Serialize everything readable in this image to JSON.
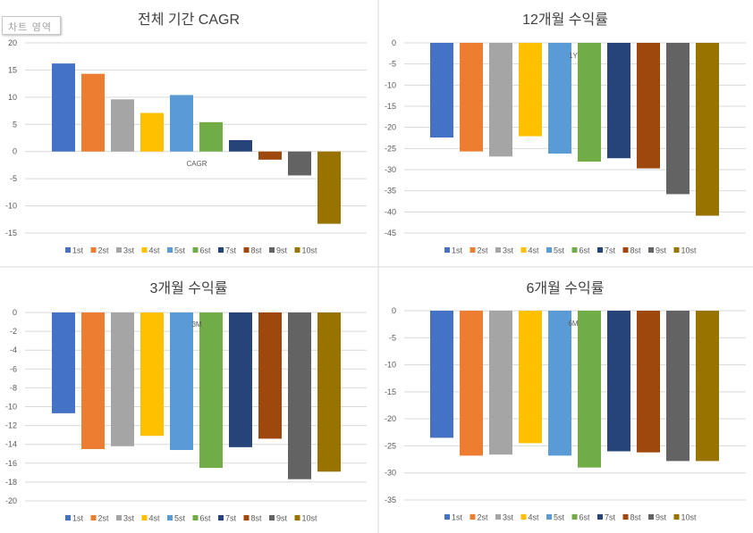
{
  "tooltip": "차트 영역",
  "series_colors": {
    "1st": "#4472C4",
    "2st": "#ED7D31",
    "3st": "#A5A5A5",
    "4st": "#FFC000",
    "5st": "#5B9BD5",
    "6st": "#70AD47",
    "7st": "#264478",
    "8st": "#9E480E",
    "9st": "#636363",
    "10st": "#997300"
  },
  "chart_data": [
    {
      "type": "bar",
      "title": "전체 기간 CAGR",
      "category_label": "CAGR",
      "series_names": [
        "1st",
        "2st",
        "3st",
        "4st",
        "5st",
        "6st",
        "7st",
        "8st",
        "9st",
        "10st"
      ],
      "values": [
        16.2,
        14.3,
        9.6,
        7.1,
        10.4,
        5.4,
        2.1,
        -1.5,
        -4.4,
        -13.3
      ],
      "ylim": [
        -15,
        20
      ],
      "yticks": [
        20,
        15,
        10,
        5,
        0,
        -5,
        -10,
        -15
      ],
      "legend": "bottom"
    },
    {
      "type": "bar",
      "title": "12개월 수익률",
      "category_label": "1Y",
      "series_names": [
        "1st",
        "2st",
        "3st",
        "4st",
        "5st",
        "6st",
        "7st",
        "8st",
        "9st",
        "10st"
      ],
      "values": [
        -22.4,
        -25.7,
        -26.9,
        -22.1,
        -26.2,
        -28.1,
        -27.3,
        -29.7,
        -35.8,
        -40.9
      ],
      "ylim": [
        -45,
        0
      ],
      "yticks": [
        0,
        -5,
        -10,
        -15,
        -20,
        -25,
        -30,
        -35,
        -40,
        -45
      ],
      "legend": "bottom"
    },
    {
      "type": "bar",
      "title": "3개월 수익률",
      "category_label": "3M",
      "series_names": [
        "1st",
        "2st",
        "3st",
        "4st",
        "5st",
        "6st",
        "7st",
        "8st",
        "9st",
        "10st"
      ],
      "values": [
        -10.7,
        -14.5,
        -14.2,
        -13.1,
        -14.6,
        -16.5,
        -14.3,
        -13.4,
        -17.7,
        -16.9
      ],
      "ylim": [
        -20,
        0
      ],
      "yticks": [
        0,
        -2,
        -4,
        -6,
        -8,
        -10,
        -12,
        -14,
        -16,
        -18,
        -20
      ],
      "legend": "bottom"
    },
    {
      "type": "bar",
      "title": "6개월 수익률",
      "category_label": "6M",
      "series_names": [
        "1st",
        "2st",
        "3st",
        "4st",
        "5st",
        "6st",
        "7st",
        "8st",
        "9st",
        "10st"
      ],
      "values": [
        -23.5,
        -26.8,
        -26.6,
        -24.5,
        -26.8,
        -29.0,
        -26.0,
        -26.2,
        -27.8,
        -27.8
      ],
      "ylim": [
        -35,
        0
      ],
      "yticks": [
        0,
        -5,
        -10,
        -15,
        -20,
        -25,
        -30,
        -35
      ],
      "legend": "bottom"
    }
  ]
}
